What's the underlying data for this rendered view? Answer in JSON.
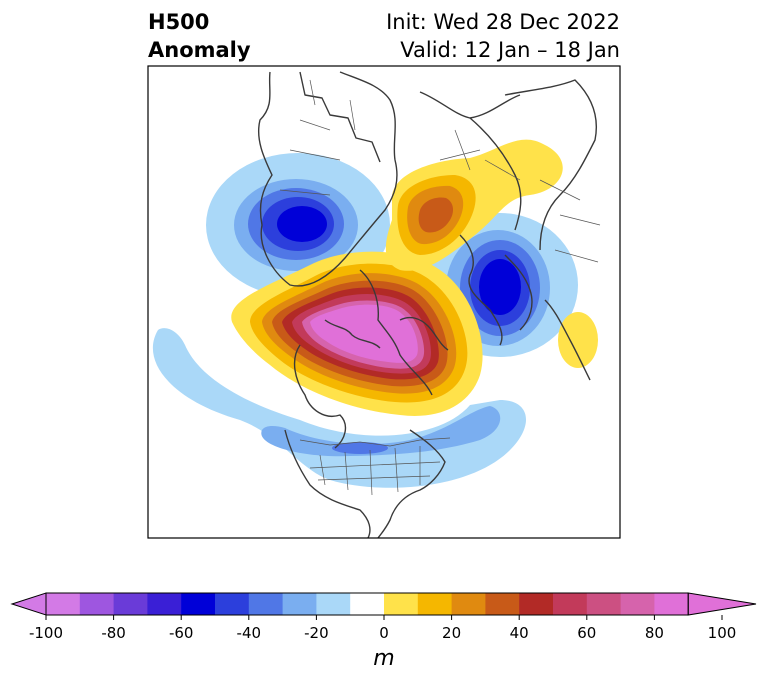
{
  "title": {
    "line1": "H500",
    "line2": "Anomaly"
  },
  "subtitle": {
    "init": "Init: Wed 28 Dec 2022",
    "valid": "Valid: 12 Jan – 18 Jan"
  },
  "colorbar": {
    "ticks": [
      "-100",
      "-80",
      "-60",
      "-40",
      "-20",
      "0",
      "20",
      "40",
      "60",
      "80",
      "100"
    ],
    "unit": "m",
    "colors": [
      "#d37ae6",
      "#9e56e0",
      "#6a3bd8",
      "#3a1fd6",
      "#0000d8",
      "#2c3fdc",
      "#5077e6",
      "#7aaef0",
      "#aad8f8",
      "#ffffff",
      "#ffe24a",
      "#f5b700",
      "#e08a10",
      "#c85a18",
      "#b22a26",
      "#c23a5a",
      "#cc5082",
      "#d663ac",
      "#e070d8"
    ],
    "range": [
      -100,
      100
    ],
    "step": 10,
    "extend": "both"
  }
}
